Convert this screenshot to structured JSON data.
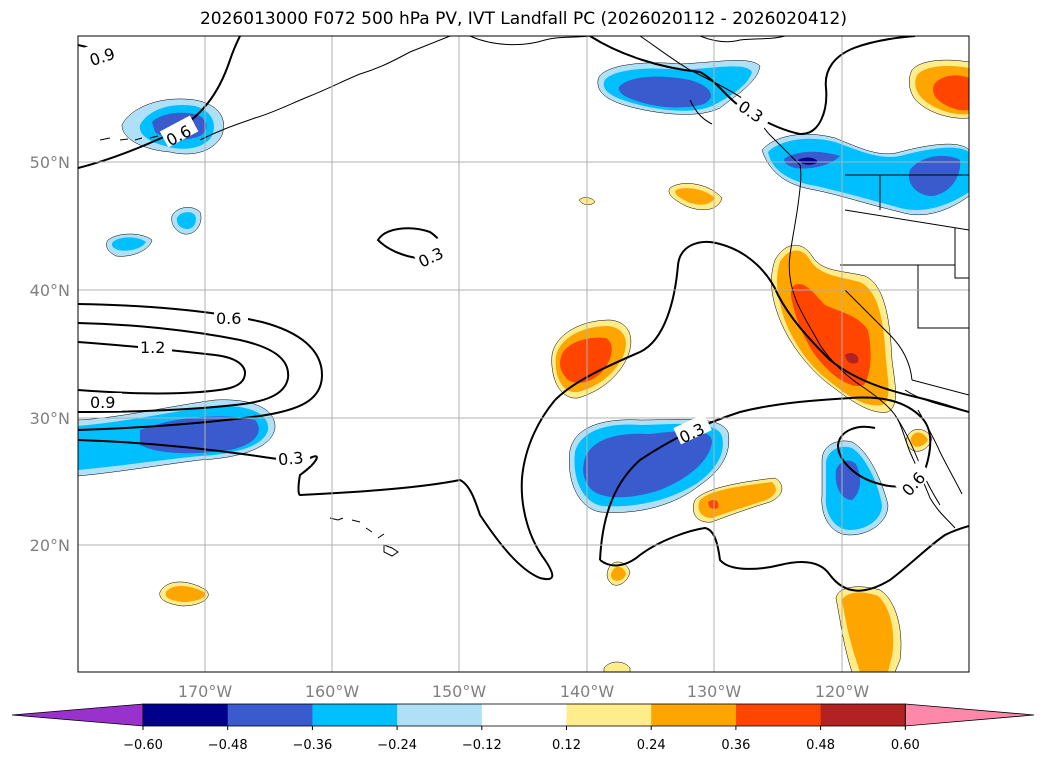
{
  "title": "2026013000 F072 500 hPa PV, IVT Landfall PC (2026020112 - 2026020412)",
  "lat_labels": [
    "50°N",
    "40°N",
    "30°N",
    "20°N"
  ],
  "lon_labels": [
    "170°W",
    "160°W",
    "150°W",
    "140°W",
    "130°W",
    "120°W"
  ],
  "contour_labels": [
    "0.9",
    "0.6",
    "0.3",
    "0.3",
    "0.6",
    "1.2",
    "0.9",
    "0.3",
    "0.3",
    "0.6"
  ],
  "colorbar": {
    "ticks": [
      "−0.60",
      "−0.48",
      "−0.36",
      "−0.24",
      "−0.12",
      "0.12",
      "0.24",
      "0.36",
      "0.48",
      "0.60"
    ],
    "colors": [
      "#9932cc",
      "#00008b",
      "#3a5bcd",
      "#00bfff",
      "#b0e0f8",
      "#ffffff",
      "#ffec8b",
      "#ffa500",
      "#ff4500",
      "#b22222",
      "#ff88aa"
    ]
  },
  "colors": {
    "neg_dark": "#3a5bcd",
    "neg_mid": "#00bfff",
    "neg_light": "#b0e0f8",
    "pos_light": "#ffec8b",
    "pos_mid": "#ffa500",
    "pos_dark": "#ff4500",
    "darkblue": "#00008b"
  }
}
